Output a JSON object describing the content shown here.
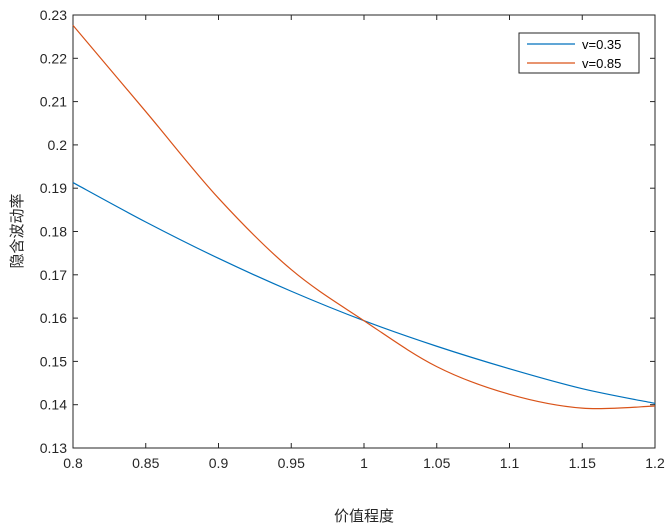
{
  "chart_data": {
    "type": "line",
    "xlabel": "价值程度",
    "ylabel": "隐含波动率",
    "xlim": [
      0.8,
      1.2
    ],
    "ylim": [
      0.13,
      0.23
    ],
    "xticks": [
      "0.8",
      "0.85",
      "0.9",
      "0.95",
      "1",
      "1.05",
      "1.1",
      "1.15",
      "1.2"
    ],
    "yticks": [
      "0.13",
      "0.14",
      "0.15",
      "0.16",
      "0.17",
      "0.18",
      "0.19",
      "0.2",
      "0.21",
      "0.22",
      "0.23"
    ],
    "grid": false,
    "legend_position": "top-right",
    "x": [
      0.8,
      0.85,
      0.9,
      0.95,
      1.0,
      1.05,
      1.1,
      1.15,
      1.2
    ],
    "series": [
      {
        "name": "v=0.35",
        "color": "#0072BD",
        "values": [
          0.1913,
          0.1822,
          0.1738,
          0.1662,
          0.1594,
          0.1535,
          0.1483,
          0.1437,
          0.1403
        ]
      },
      {
        "name": "v=0.85",
        "color": "#D95319",
        "values": [
          0.2276,
          0.2077,
          0.1877,
          0.1712,
          0.1594,
          0.1488,
          0.1424,
          0.1392,
          0.1397
        ]
      }
    ]
  }
}
